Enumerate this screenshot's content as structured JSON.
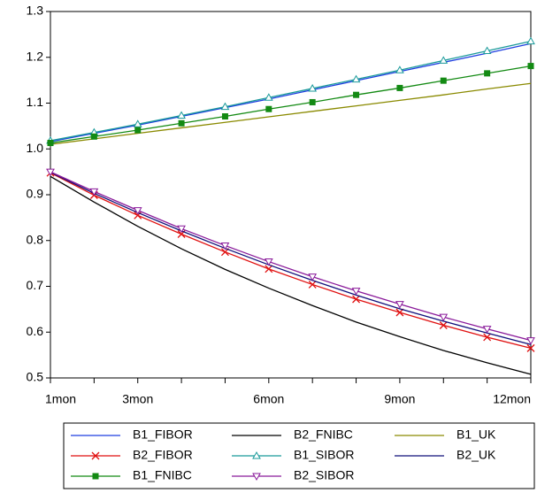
{
  "chart_data": {
    "type": "line",
    "categories": [
      "1mon",
      null,
      "3mon",
      null,
      null,
      "6mon",
      null,
      null,
      "9mon",
      null,
      null,
      "12mon"
    ],
    "ylim": [
      0.5,
      1.3
    ],
    "yticks": [
      0.5,
      0.6,
      0.7,
      0.8,
      0.9,
      {
        "value": 1,
        "label": "1.0"
      },
      1.1,
      1.2,
      1.3
    ],
    "grid": false,
    "legend": "bottom",
    "series": [
      {
        "name": "B1_FIBOR",
        "color": "#1f3fe0",
        "marker": "none",
        "values": [
          1.016,
          1.034,
          1.052,
          1.071,
          1.09,
          1.109,
          1.129,
          1.149,
          1.169,
          1.189,
          1.209,
          1.23
        ]
      },
      {
        "name": "B2_FNIBC",
        "color": "#000000",
        "marker": "none",
        "values": [
          0.94,
          0.884,
          0.831,
          0.782,
          0.737,
          0.696,
          0.658,
          0.622,
          0.59,
          0.56,
          0.533,
          0.508
        ]
      },
      {
        "name": "B1_UK",
        "color": "#8a8a00",
        "marker": "none",
        "values": [
          1.01,
          1.022,
          1.034,
          1.046,
          1.058,
          1.07,
          1.082,
          1.094,
          1.106,
          1.118,
          1.131,
          1.143
        ]
      },
      {
        "name": "B2_FIBOR",
        "color": "#e01010",
        "marker": "x",
        "values": [
          0.948,
          0.899,
          0.855,
          0.814,
          0.775,
          0.738,
          0.704,
          0.672,
          0.643,
          0.615,
          0.589,
          0.565
        ]
      },
      {
        "name": "B1_SIBOR",
        "color": "#1a9a9a",
        "marker": "triangle",
        "values": [
          1.018,
          1.036,
          1.054,
          1.073,
          1.092,
          1.112,
          1.132,
          1.152,
          1.172,
          1.193,
          1.214,
          1.235
        ]
      },
      {
        "name": "B2_UK",
        "color": "#10107a",
        "marker": "none",
        "values": [
          0.949,
          0.903,
          0.861,
          0.821,
          0.783,
          0.747,
          0.713,
          0.681,
          0.651,
          0.624,
          0.598,
          0.573
        ]
      },
      {
        "name": "B1_FNIBC",
        "color": "#138a13",
        "marker": "square",
        "values": [
          1.013,
          1.027,
          1.041,
          1.056,
          1.071,
          1.087,
          1.102,
          1.118,
          1.133,
          1.149,
          1.165,
          1.181
        ]
      },
      {
        "name": "B2_SIBOR",
        "color": "#8a1a9a",
        "marker": "triangle-down",
        "values": [
          0.95,
          0.907,
          0.866,
          0.826,
          0.789,
          0.754,
          0.721,
          0.69,
          0.661,
          0.633,
          0.607,
          0.582
        ]
      }
    ]
  }
}
